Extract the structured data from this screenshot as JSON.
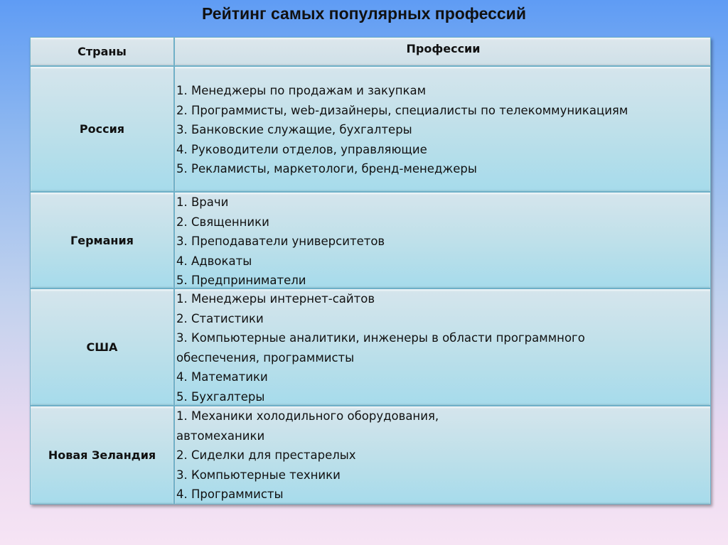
{
  "title": "Рейтинг самых популярных профессий",
  "table": {
    "headers": [
      "Страны",
      "Профессии"
    ],
    "rows": [
      {
        "country": "Россия",
        "items": [
          "1. Менеджеры по продажам и закупкам",
          "2. Программисты, web-дизайнеры, специалисты по телекоммуникациям",
          "3. Банковские служащие, бухгалтеры",
          "4. Руководители отделов, управляющие",
          "5. Рекламисты, маркетологи, бренд-менеджеры"
        ]
      },
      {
        "country": "Германия",
        "items": [
          "1. Врачи",
          "2. Священники",
          "3. Преподаватели университетов",
          "4. Адвокаты",
          "5. Предприниматели"
        ]
      },
      {
        "country": "США",
        "items": [
          "1. Менеджеры интернет-сайтов",
          "2. Статистики",
          "3. Компьютерные аналитики, инженеры в области программного",
          "обеспечения, программисты",
          "4. Математики",
          "5. Бухгалтеры"
        ]
      },
      {
        "country": "Новая Зеландия",
        "items": [
          "1. Механики холодильного оборудования,",
          "автомеханики",
          "2. Сиделки для престарелых",
          "3. Компьютерные техники",
          "4. Программисты"
        ]
      }
    ]
  }
}
